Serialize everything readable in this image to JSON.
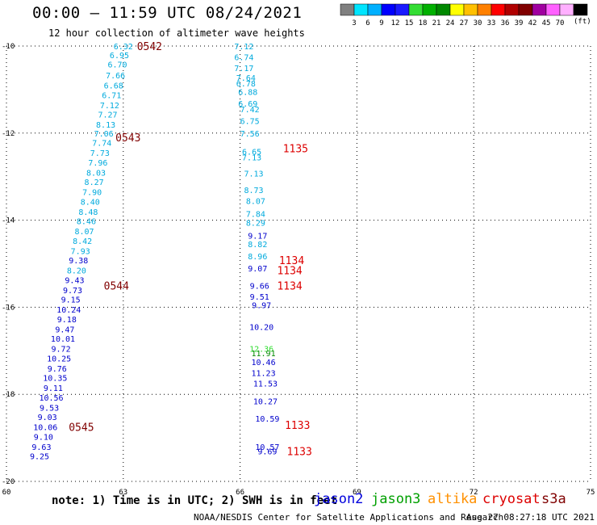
{
  "header": {
    "title": "00:00 – 11:59 UTC 08/24/2021",
    "subtitle": "12 hour collection of altimeter wave heights"
  },
  "color_scale": {
    "unit": "(ft)",
    "labels": [
      "3",
      "6",
      "9",
      "12",
      "15",
      "18",
      "21",
      "24",
      "27",
      "30",
      "33",
      "36",
      "39",
      "42",
      "45",
      "70"
    ],
    "colors": [
      "#808080",
      "#00e5ff",
      "#00b0ff",
      "#0000ff",
      "#1a1aff",
      "#33dd33",
      "#00b000",
      "#008800",
      "#ffff00",
      "#ffc000",
      "#ff8000",
      "#ff0000",
      "#b00000",
      "#800000",
      "#a000a0",
      "#ff60ff",
      "#ffb0ff",
      "#000000"
    ]
  },
  "footer": {
    "note": "note: 1) Time is in UTC; 2) SWH is in feet",
    "credit": "NOAA/NESDIS Center for Satellite Applications and Research",
    "timestamp": "Aug 27 08:27:18 UTC 2021"
  },
  "satellites": [
    {
      "name": "jason2",
      "color": "#0000dd"
    },
    {
      "name": "jason3",
      "color": "#00a000"
    },
    {
      "name": "altika",
      "color": "#ff9000"
    },
    {
      "name": "cryosat",
      "color": "#dd0000"
    },
    {
      "name": "s3a",
      "color": "#800000"
    }
  ],
  "chart_data": {
    "type": "scatter",
    "title": "12 hour collection of altimeter wave heights",
    "xlim": [
      60,
      75
    ],
    "ylim": [
      -20,
      -10
    ],
    "x_ticks": [
      "60",
      "63",
      "66",
      "69",
      "72",
      "75"
    ],
    "y_ticks": [
      "-10",
      "-12",
      "-14",
      "-16",
      "-18",
      "-20"
    ],
    "grid": true,
    "points": [
      {
        "x": 63.0,
        "y": -10.0,
        "label": "6.32",
        "color": "#00aadd"
      },
      {
        "x": 62.9,
        "y": -10.2,
        "label": "6.95",
        "color": "#00aadd"
      },
      {
        "x": 62.85,
        "y": -10.42,
        "label": "6.70",
        "color": "#00aadd"
      },
      {
        "x": 62.8,
        "y": -10.67,
        "label": "7.66",
        "color": "#00aadd"
      },
      {
        "x": 62.75,
        "y": -10.9,
        "label": "6.68",
        "color": "#00aadd"
      },
      {
        "x": 62.7,
        "y": -11.12,
        "label": "6.71",
        "color": "#00aadd"
      },
      {
        "x": 62.65,
        "y": -11.35,
        "label": "7.12",
        "color": "#00aadd"
      },
      {
        "x": 62.6,
        "y": -11.57,
        "label": "7.27",
        "color": "#00aadd"
      },
      {
        "x": 62.55,
        "y": -11.8,
        "label": "8.13",
        "color": "#00aadd"
      },
      {
        "x": 62.5,
        "y": -12.0,
        "label": "7.06",
        "color": "#00aadd"
      },
      {
        "x": 62.45,
        "y": -12.22,
        "label": "7.74",
        "color": "#00aadd"
      },
      {
        "x": 62.4,
        "y": -12.45,
        "label": "7.73",
        "color": "#00aadd"
      },
      {
        "x": 62.35,
        "y": -12.67,
        "label": "7.96",
        "color": "#00aadd"
      },
      {
        "x": 62.3,
        "y": -12.9,
        "label": "8.03",
        "color": "#00aadd"
      },
      {
        "x": 62.25,
        "y": -13.12,
        "label": "8.27",
        "color": "#00aadd"
      },
      {
        "x": 62.2,
        "y": -13.35,
        "label": "7.90",
        "color": "#00aadd"
      },
      {
        "x": 62.15,
        "y": -13.57,
        "label": "8.40",
        "color": "#00aadd"
      },
      {
        "x": 62.1,
        "y": -13.8,
        "label": "8.48",
        "color": "#00aadd"
      },
      {
        "x": 62.05,
        "y": -14.02,
        "label": "8.46",
        "color": "#00aadd"
      },
      {
        "x": 62.0,
        "y": -14.25,
        "label": "8.07",
        "color": "#00aadd"
      },
      {
        "x": 61.95,
        "y": -14.47,
        "label": "8.42",
        "color": "#00aadd"
      },
      {
        "x": 61.9,
        "y": -14.7,
        "label": "7.93",
        "color": "#00aadd"
      },
      {
        "x": 61.85,
        "y": -14.92,
        "label": "9.38",
        "color": "#0000cc"
      },
      {
        "x": 61.8,
        "y": -15.15,
        "label": "8.20",
        "color": "#00aadd"
      },
      {
        "x": 61.75,
        "y": -15.37,
        "label": "9.43",
        "color": "#0000cc"
      },
      {
        "x": 61.7,
        "y": -15.6,
        "label": "9.73",
        "color": "#0000cc"
      },
      {
        "x": 61.65,
        "y": -15.82,
        "label": "9.15",
        "color": "#0000cc"
      },
      {
        "x": 61.6,
        "y": -16.05,
        "label": "10.24",
        "color": "#0000cc"
      },
      {
        "x": 61.55,
        "y": -16.27,
        "label": "9.18",
        "color": "#0000cc"
      },
      {
        "x": 61.5,
        "y": -16.5,
        "label": "9.47",
        "color": "#0000cc"
      },
      {
        "x": 61.45,
        "y": -16.72,
        "label": "10.01",
        "color": "#0000cc"
      },
      {
        "x": 61.4,
        "y": -16.95,
        "label": "9.72",
        "color": "#0000cc"
      },
      {
        "x": 61.35,
        "y": -17.17,
        "label": "10.25",
        "color": "#0000cc"
      },
      {
        "x": 61.3,
        "y": -17.4,
        "label": "9.76",
        "color": "#0000cc"
      },
      {
        "x": 61.25,
        "y": -17.62,
        "label": "10.35",
        "color": "#0000cc"
      },
      {
        "x": 61.2,
        "y": -17.85,
        "label": "9.11",
        "color": "#0000cc"
      },
      {
        "x": 61.15,
        "y": -18.07,
        "label": "10.56",
        "color": "#0000cc"
      },
      {
        "x": 61.1,
        "y": -18.3,
        "label": "9.53",
        "color": "#0000cc"
      },
      {
        "x": 61.05,
        "y": -18.52,
        "label": "9.03",
        "color": "#0000cc"
      },
      {
        "x": 61.0,
        "y": -18.75,
        "label": "10.06",
        "color": "#0000cc"
      },
      {
        "x": 60.95,
        "y": -18.97,
        "label": "9.10",
        "color": "#0000cc"
      },
      {
        "x": 60.9,
        "y": -19.2,
        "label": "9.63",
        "color": "#0000cc"
      },
      {
        "x": 60.85,
        "y": -19.42,
        "label": "9.25",
        "color": "#0000cc"
      },
      {
        "x": 66.1,
        "y": -10.0,
        "label": "7.12",
        "color": "#00aadd"
      },
      {
        "x": 66.1,
        "y": -10.25,
        "label": "6.74",
        "color": "#00aadd"
      },
      {
        "x": 66.1,
        "y": -10.5,
        "label": "7.17",
        "color": "#00aadd"
      },
      {
        "x": 66.15,
        "y": -10.72,
        "label": "7.64",
        "color": "#00aadd"
      },
      {
        "x": 66.15,
        "y": -10.85,
        "label": "6.78",
        "color": "#00aadd"
      },
      {
        "x": 66.2,
        "y": -11.05,
        "label": "6.88",
        "color": "#00aadd"
      },
      {
        "x": 66.2,
        "y": -11.32,
        "label": "6.69",
        "color": "#00aadd"
      },
      {
        "x": 66.25,
        "y": -11.45,
        "label": "7.42",
        "color": "#00aadd"
      },
      {
        "x": 66.25,
        "y": -11.72,
        "label": "6.75",
        "color": "#00aadd"
      },
      {
        "x": 66.25,
        "y": -12.0,
        "label": "7.56",
        "color": "#00aadd"
      },
      {
        "x": 66.3,
        "y": -12.42,
        "label": "6.65",
        "color": "#00aadd"
      },
      {
        "x": 66.3,
        "y": -12.55,
        "label": "7.13",
        "color": "#00aadd"
      },
      {
        "x": 66.35,
        "y": -12.92,
        "label": "7.13",
        "color": "#00aadd"
      },
      {
        "x": 66.35,
        "y": -13.3,
        "label": "8.73",
        "color": "#00aadd"
      },
      {
        "x": 66.4,
        "y": -13.55,
        "label": "8.07",
        "color": "#00aadd"
      },
      {
        "x": 66.4,
        "y": -13.85,
        "label": "7.84",
        "color": "#00aadd"
      },
      {
        "x": 66.4,
        "y": -14.05,
        "label": "8.29",
        "color": "#00aadd"
      },
      {
        "x": 66.45,
        "y": -14.35,
        "label": "9.17",
        "color": "#0000cc"
      },
      {
        "x": 66.45,
        "y": -14.55,
        "label": "8.82",
        "color": "#00aadd"
      },
      {
        "x": 66.45,
        "y": -14.82,
        "label": "8.96",
        "color": "#00aadd"
      },
      {
        "x": 66.45,
        "y": -15.1,
        "label": "9.07",
        "color": "#0000cc"
      },
      {
        "x": 66.5,
        "y": -15.5,
        "label": "9.66",
        "color": "#0000cc"
      },
      {
        "x": 66.5,
        "y": -15.75,
        "label": "9.51",
        "color": "#0000cc"
      },
      {
        "x": 66.55,
        "y": -15.95,
        "label": "9.97",
        "color": "#0000cc"
      },
      {
        "x": 66.55,
        "y": -16.45,
        "label": "10.20",
        "color": "#0000cc"
      },
      {
        "x": 66.55,
        "y": -16.95,
        "label": "12.36",
        "color": "#33dd33"
      },
      {
        "x": 66.6,
        "y": -17.05,
        "label": "11.91",
        "color": "#008800"
      },
      {
        "x": 66.6,
        "y": -17.25,
        "label": "10.46",
        "color": "#0000cc"
      },
      {
        "x": 66.6,
        "y": -17.5,
        "label": "11.23",
        "color": "#0000cc"
      },
      {
        "x": 66.65,
        "y": -17.75,
        "label": "11.53",
        "color": "#0000cc"
      },
      {
        "x": 66.65,
        "y": -18.15,
        "label": "10.27",
        "color": "#0000cc"
      },
      {
        "x": 66.7,
        "y": -18.55,
        "label": "10.59",
        "color": "#0000cc"
      },
      {
        "x": 66.7,
        "y": -19.2,
        "label": "10.57",
        "color": "#0000cc"
      },
      {
        "x": 66.7,
        "y": -19.3,
        "label": "9.69",
        "color": "#0000cc"
      }
    ],
    "time_labels": [
      {
        "x": 63.35,
        "y": -10.0,
        "label": "0542",
        "color": "#800000"
      },
      {
        "x": 62.8,
        "y": -12.1,
        "label": "0543",
        "color": "#800000"
      },
      {
        "x": 62.5,
        "y": -15.5,
        "label": "0544",
        "color": "#800000"
      },
      {
        "x": 61.6,
        "y": -18.75,
        "label": "0545",
        "color": "#800000"
      },
      {
        "x": 67.1,
        "y": -12.35,
        "label": "1135",
        "color": "#dd0000"
      },
      {
        "x": 67.0,
        "y": -14.92,
        "label": "1134",
        "color": "#dd0000"
      },
      {
        "x": 66.95,
        "y": -15.15,
        "label": "1134",
        "color": "#dd0000"
      },
      {
        "x": 66.95,
        "y": -15.5,
        "label": "1134",
        "color": "#dd0000"
      },
      {
        "x": 67.15,
        "y": -18.7,
        "label": "1133",
        "color": "#dd0000"
      },
      {
        "x": 67.2,
        "y": -19.3,
        "label": "1133",
        "color": "#dd0000"
      }
    ]
  }
}
